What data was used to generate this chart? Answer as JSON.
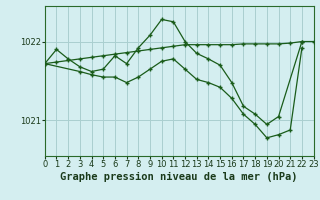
{
  "background_color": "#d4eef0",
  "grid_color": "#aacfcf",
  "line_color": "#1a5c1a",
  "marker_color": "#1a5c1a",
  "title": "Graphe pression niveau de la mer (hPa)",
  "xlim": [
    0,
    23
  ],
  "ylim": [
    1020.55,
    1022.45
  ],
  "yticks": [
    1021,
    1022
  ],
  "xticks": [
    0,
    1,
    2,
    3,
    4,
    5,
    6,
    7,
    8,
    9,
    10,
    11,
    12,
    13,
    14,
    15,
    16,
    17,
    18,
    19,
    20,
    21,
    22,
    23
  ],
  "series": [
    {
      "x": [
        0,
        1,
        2,
        3,
        4,
        5,
        6,
        7,
        8,
        9,
        10,
        11,
        12,
        13,
        14,
        15,
        16,
        17,
        18,
        19,
        20,
        22
      ],
      "y": [
        1021.72,
        1021.9,
        1021.78,
        1021.68,
        1021.62,
        1021.65,
        1021.82,
        1021.72,
        1021.92,
        1022.08,
        1022.28,
        1022.25,
        1022.0,
        1021.85,
        1021.78,
        1021.7,
        1021.48,
        1021.18,
        1021.08,
        1020.95,
        1021.05,
        1022.0
      ]
    },
    {
      "x": [
        0,
        1,
        2,
        3,
        4,
        5,
        6,
        7,
        8,
        9,
        10,
        11,
        12,
        13,
        14,
        15,
        16,
        17,
        18,
        19,
        20,
        21,
        22,
        23
      ],
      "y": [
        1021.72,
        1021.74,
        1021.76,
        1021.78,
        1021.8,
        1021.82,
        1021.84,
        1021.86,
        1021.88,
        1021.9,
        1021.92,
        1021.94,
        1021.96,
        1021.96,
        1021.96,
        1021.96,
        1021.96,
        1021.97,
        1021.97,
        1021.97,
        1021.97,
        1021.98,
        1022.0,
        1022.0
      ]
    },
    {
      "x": [
        0,
        3,
        4,
        5,
        6,
        7,
        8,
        9,
        10,
        11,
        12,
        13,
        14,
        15,
        16,
        17,
        18,
        19,
        20,
        21,
        22
      ],
      "y": [
        1021.72,
        1021.62,
        1021.58,
        1021.55,
        1021.55,
        1021.48,
        1021.55,
        1021.65,
        1021.75,
        1021.78,
        1021.65,
        1021.52,
        1021.48,
        1021.42,
        1021.28,
        1021.08,
        1020.95,
        1020.78,
        1020.82,
        1020.88,
        1021.92
      ]
    }
  ],
  "title_fontsize": 7.5,
  "tick_fontsize": 6,
  "marker_size": 3.5,
  "linewidth": 0.9
}
